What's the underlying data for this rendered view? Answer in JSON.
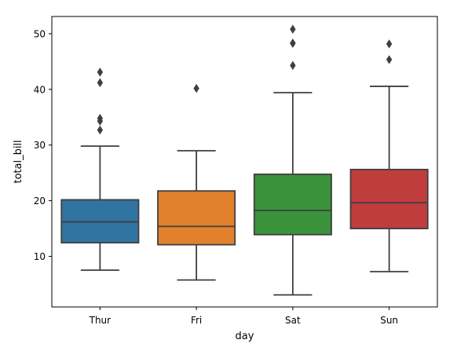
{
  "chart_data": {
    "type": "box",
    "xlabel": "day",
    "ylabel": "total_bill",
    "ylim": [
      0.9,
      53.1
    ],
    "yticks": [
      10,
      20,
      30,
      40,
      50
    ],
    "categories": [
      "Thur",
      "Fri",
      "Sat",
      "Sun"
    ],
    "boxes": [
      {
        "category": "Thur",
        "color": "#3274a1",
        "whisker_low": 7.51,
        "q1": 12.44,
        "median": 16.2,
        "q3": 20.16,
        "whisker_high": 29.8,
        "outliers": [
          32.7,
          34.3,
          34.8,
          41.2,
          43.1
        ]
      },
      {
        "category": "Fri",
        "color": "#e1812c",
        "whisker_low": 5.75,
        "q1": 12.09,
        "median": 15.38,
        "q3": 21.75,
        "whisker_high": 28.97,
        "outliers": [
          40.17
        ]
      },
      {
        "category": "Sat",
        "color": "#3a923a",
        "whisker_low": 3.07,
        "q1": 13.9,
        "median": 18.24,
        "q3": 24.74,
        "whisker_high": 39.42,
        "outliers": [
          44.3,
          48.27,
          48.33,
          50.81
        ]
      },
      {
        "category": "Sun",
        "color": "#c03d3e",
        "whisker_low": 7.25,
        "q1": 14.99,
        "median": 19.63,
        "q3": 25.6,
        "whisker_high": 40.55,
        "outliers": [
          45.35,
          48.17
        ]
      }
    ]
  }
}
